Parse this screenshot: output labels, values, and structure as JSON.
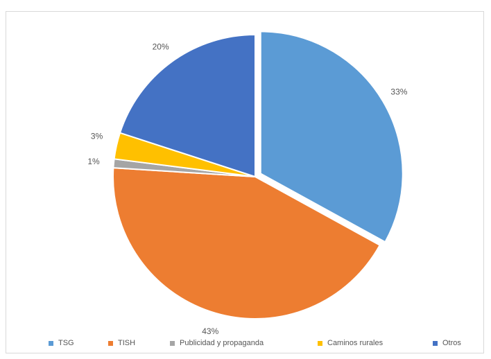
{
  "chart_data": {
    "type": "pie",
    "title": "",
    "slices": [
      {
        "label": "TSG",
        "value": 33,
        "data_label": "33%",
        "color": "#5B9BD5",
        "exploded": true
      },
      {
        "label": "TISH",
        "value": 43,
        "data_label": "43%",
        "color": "#ED7D31",
        "exploded": false
      },
      {
        "label": "Publicidad y propaganda",
        "value": 1,
        "data_label": "1%",
        "color": "#A5A5A5",
        "exploded": false
      },
      {
        "label": "Caminos rurales",
        "value": 3,
        "data_label": "3%",
        "color": "#FFC000",
        "exploded": false
      },
      {
        "label": "Otros",
        "value": 20,
        "data_label": "20%",
        "color": "#4472C4",
        "exploded": false
      }
    ],
    "legend_position": "bottom"
  }
}
